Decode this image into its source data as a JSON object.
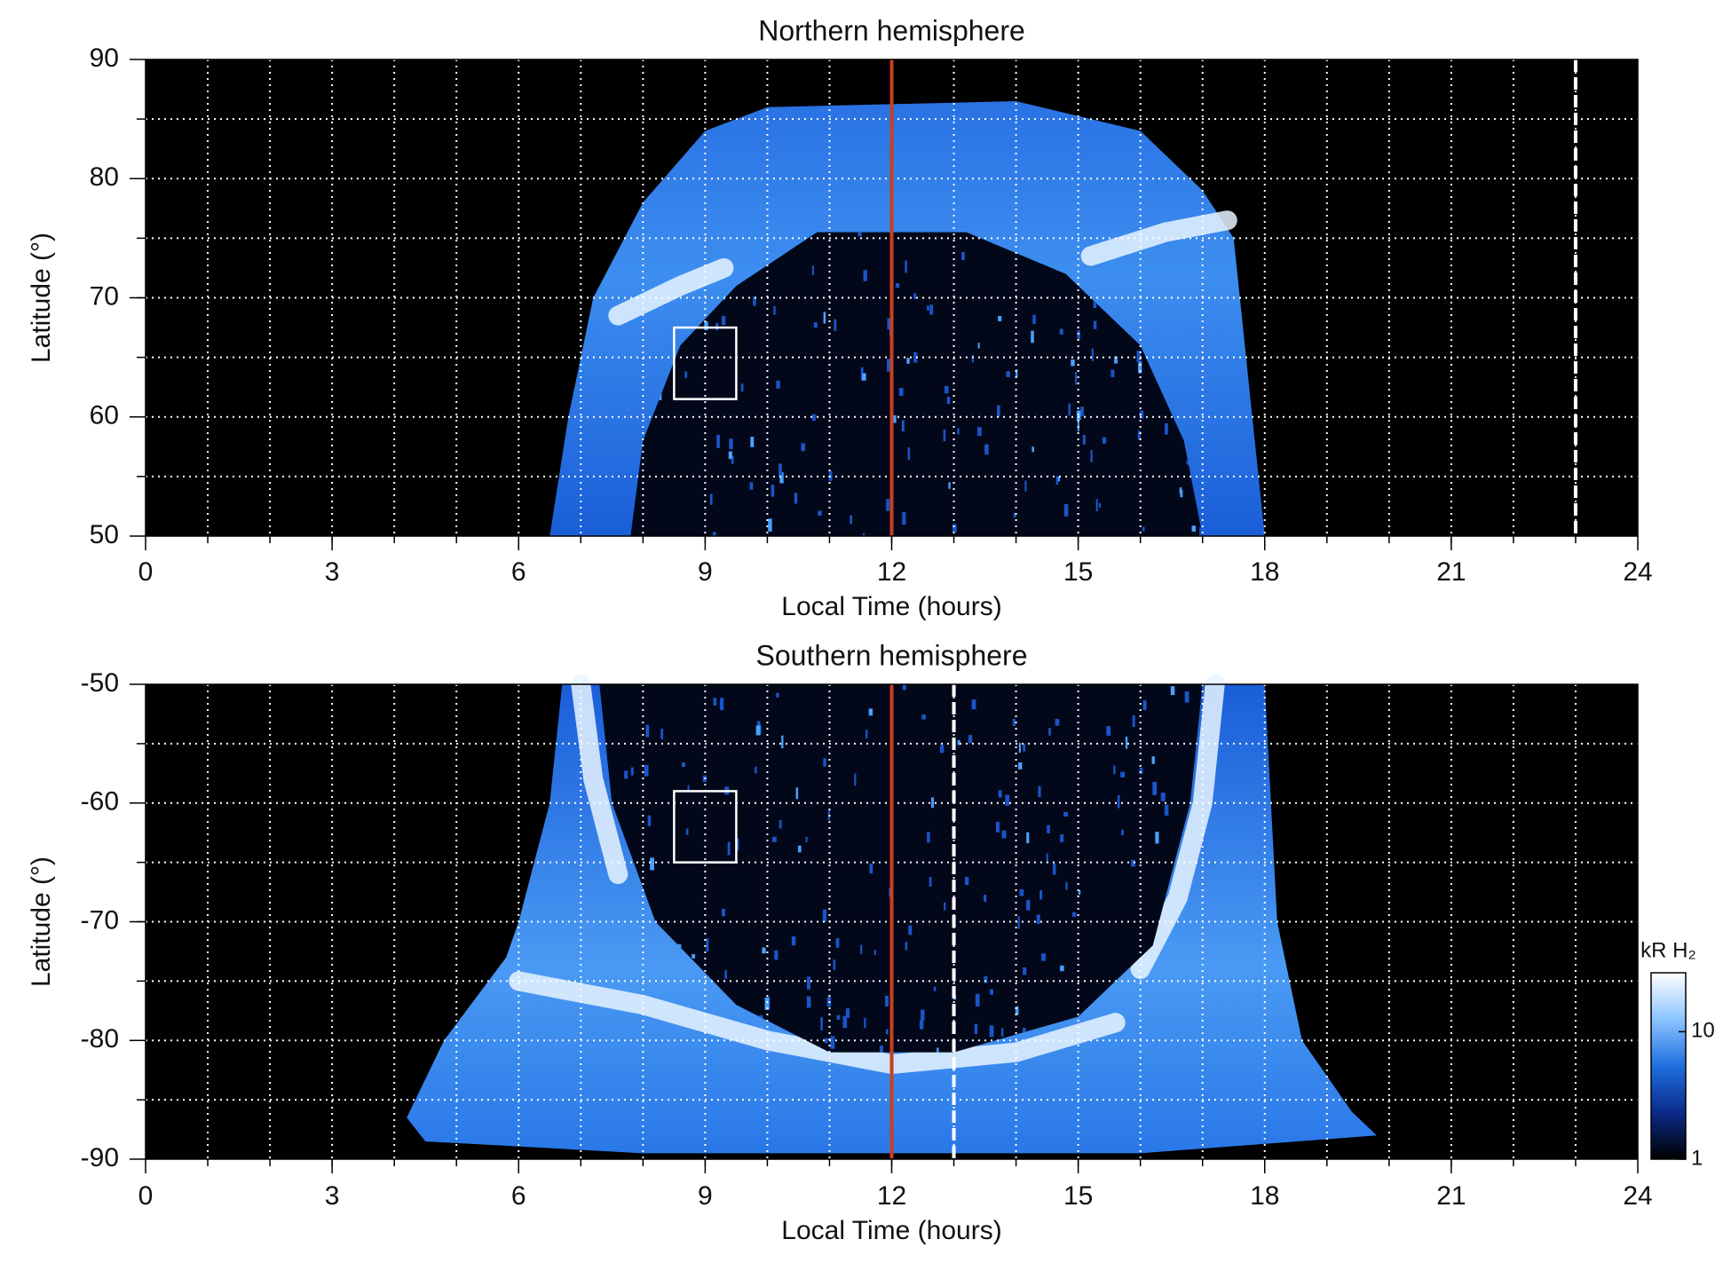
{
  "chart_data": [
    {
      "type": "heatmap",
      "title": "Northern hemisphere",
      "xlabel": "Local Time (hours)",
      "ylabel": "Latitude (°)",
      "xlim": [
        0,
        24
      ],
      "ylim": [
        50,
        90
      ],
      "xticks": [
        0,
        3,
        6,
        9,
        12,
        15,
        18,
        21,
        24
      ],
      "yticks": [
        50,
        60,
        70,
        80,
        90
      ],
      "xgrid": [
        1,
        2,
        3,
        4,
        5,
        6,
        7,
        8,
        9,
        10,
        11,
        12,
        13,
        14,
        15,
        16,
        17,
        18,
        19,
        20,
        21,
        22,
        23
      ],
      "ygrid": [
        55,
        60,
        65,
        70,
        75,
        80,
        85
      ],
      "vlines": [
        {
          "x": 12,
          "color": "#c8401e"
        },
        {
          "x": 23,
          "color": "#ffffff",
          "dash": true
        }
      ],
      "box": {
        "x": [
          8.5,
          9.5
        ],
        "y": [
          61.5,
          67.5
        ]
      }
    },
    {
      "type": "heatmap",
      "title": "Southern hemisphere",
      "xlabel": "Local Time (hours)",
      "ylabel": "Latitude (°)",
      "xlim": [
        0,
        24
      ],
      "ylim": [
        -90,
        -50
      ],
      "xticks": [
        0,
        3,
        6,
        9,
        12,
        15,
        18,
        21,
        24
      ],
      "yticks": [
        -90,
        -80,
        -70,
        -60,
        -50
      ],
      "xgrid": [
        1,
        2,
        3,
        4,
        5,
        6,
        7,
        8,
        9,
        10,
        11,
        12,
        13,
        14,
        15,
        16,
        17,
        18,
        19,
        20,
        21,
        22,
        23
      ],
      "ygrid": [
        -85,
        -80,
        -75,
        -70,
        -65,
        -60,
        -55
      ],
      "vlines": [
        {
          "x": 12,
          "color": "#c8401e"
        },
        {
          "x": 13,
          "color": "#ffffff",
          "dash": true
        }
      ],
      "box": {
        "x": [
          8.5,
          9.5
        ],
        "y": [
          -65,
          -59
        ]
      },
      "colorbar": {
        "label": "kR H₂",
        "scale": "log",
        "lim": [
          1,
          29
        ],
        "ticks": [
          1,
          10
        ],
        "colors": [
          "#000000",
          "#0a2a8a",
          "#1e6fe0",
          "#8cc4ff",
          "#ffffff"
        ]
      }
    }
  ]
}
